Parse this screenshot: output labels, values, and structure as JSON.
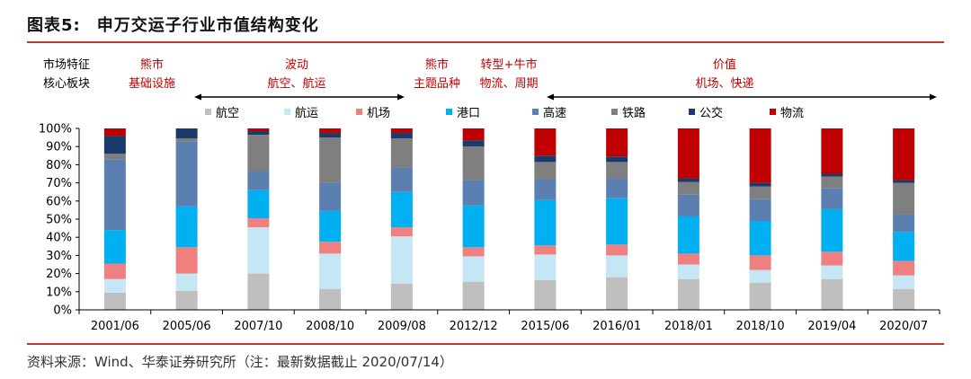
{
  "figure": {
    "title_label": "图表5:",
    "title_text": "申万交运子行业市值结构变化",
    "source": "资料来源：Wind、华泰证券研究所（注：最新数据截止 2020/07/14）"
  },
  "market_header": {
    "row_label_1": "市场特征",
    "row_label_2": "核心板块",
    "phases": [
      {
        "line1": "熊市",
        "line2": "基础设施"
      },
      {
        "line1": "波动",
        "line2": "航空、航运"
      },
      {
        "line1": "熊市",
        "line2": "主题品种"
      },
      {
        "line1": "转型+牛市",
        "line2": "物流、周期"
      },
      {
        "line1": "价值",
        "line2": "机场、快递"
      }
    ]
  },
  "chart_data": {
    "type": "bar",
    "stacked": true,
    "title": "申万交运子行业市值结构变化",
    "categories": [
      "2001/06",
      "2005/06",
      "2007/10",
      "2008/10",
      "2009/08",
      "2012/12",
      "2015/06",
      "2016/01",
      "2018/01",
      "2018/10",
      "2019/04",
      "2020/07"
    ],
    "ylim": [
      0,
      100
    ],
    "yticks": [
      "0%",
      "10%",
      "20%",
      "30%",
      "40%",
      "50%",
      "60%",
      "70%",
      "80%",
      "90%",
      "100%"
    ],
    "legend_position": "top",
    "series": [
      {
        "name": "航空",
        "color": "#bfbfbf",
        "values": [
          9.5,
          10.5,
          20,
          11.5,
          14.5,
          15.5,
          16.5,
          18,
          17,
          15,
          17,
          11.5
        ]
      },
      {
        "name": "航运",
        "color": "#c5e6f5",
        "values": [
          7.5,
          9.5,
          25.5,
          19.5,
          26,
          14,
          14,
          12,
          8,
          7,
          7.5,
          7.5
        ]
      },
      {
        "name": "机场",
        "color": "#f08080",
        "values": [
          8.5,
          14.5,
          5,
          6.5,
          5,
          5,
          5,
          6,
          6,
          8,
          7.5,
          8
        ]
      },
      {
        "name": "港口",
        "color": "#00b0f0",
        "values": [
          18.5,
          22.5,
          15.5,
          17,
          19.5,
          23,
          25,
          25.5,
          20.5,
          19,
          23.5,
          16
        ]
      },
      {
        "name": "高速",
        "color": "#5b7fb0",
        "values": [
          39,
          36,
          10.5,
          15.5,
          13.5,
          14,
          11.5,
          11,
          12,
          12,
          11.5,
          9.5
        ]
      },
      {
        "name": "铁路",
        "color": "#7f7f7f",
        "values": [
          3,
          1.5,
          20,
          25,
          16,
          18.5,
          9.5,
          9,
          7,
          7,
          6.5,
          17.5
        ]
      },
      {
        "name": "公交",
        "color": "#1a3a6b",
        "values": [
          10,
          5.5,
          2,
          2.5,
          3,
          3.5,
          3.5,
          3,
          2,
          2,
          1.5,
          1.5
        ]
      },
      {
        "name": "物流",
        "color": "#c00000",
        "values": [
          4,
          0,
          1.5,
          2.5,
          2.5,
          6.5,
          15,
          15.5,
          27.5,
          30,
          25,
          28.5
        ]
      }
    ]
  }
}
